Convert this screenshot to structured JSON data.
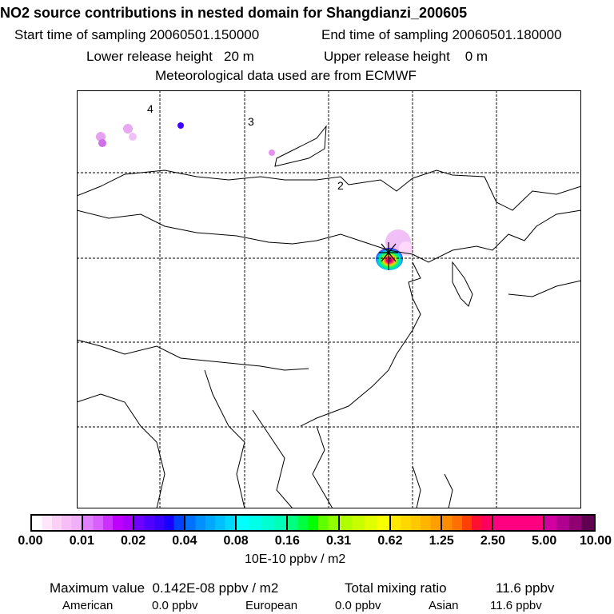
{
  "header": {
    "title": "NO2 source contributions in nested domain for Shangdianzi_200605",
    "start_label": "Start time of sampling 20060501.150000",
    "end_label": "End time of sampling 20060501.180000",
    "lower_label": "Lower release height   20 m",
    "upper_label": "Upper release height    0 m",
    "met_label": "Meteorological data used are from ECMWF"
  },
  "map": {
    "labels": [
      "4",
      "3",
      "2"
    ]
  },
  "colorbar": {
    "ticks": [
      "0.00",
      "0.01",
      "0.02",
      "0.04",
      "0.08",
      "0.16",
      "0.31",
      "0.62",
      "1.25",
      "2.50",
      "5.00",
      "10.00"
    ],
    "segments": [
      [
        "#ffffff",
        "#ffe6fa",
        "#fcd0f6",
        "#f6bdf6",
        "#f0b0f8"
      ],
      [
        "#e080ff",
        "#d860ff",
        "#cc30ff",
        "#c000ff",
        "#a800f8"
      ],
      [
        "#7000ff",
        "#5000ff",
        "#3800ff",
        "#1800ff",
        "#0040ff"
      ],
      [
        "#0070ff",
        "#0090ff",
        "#00a8ff",
        "#00c0ff",
        "#00d8ff"
      ],
      [
        "#00ffff",
        "#00ffe8",
        "#00ffd0",
        "#00ffb8"
      ],
      [
        "#00ff80",
        "#00ff40",
        "#00ff00",
        "#60ff00",
        "#90ff00"
      ],
      [
        "#b0ff00",
        "#c8ff00",
        "#e0ff00",
        "#f8ff00"
      ],
      [
        "#ffe800",
        "#ffd800",
        "#ffc800",
        "#ffb400",
        "#ffa000"
      ],
      [
        "#ff8c00",
        "#ff7000",
        "#ff4000",
        "#ff1030",
        "#ff0060"
      ],
      [
        "#ff0080",
        "#ff0080"
      ],
      [
        "#d000a0",
        "#b00090",
        "#900070",
        "#600050"
      ]
    ],
    "unit": "10E-10 ppbv / m2"
  },
  "footer": {
    "max_label": "Maximum value  0.142E-08 ppbv / m2",
    "total_label": "Total mixing ratio",
    "total_value": "11.6 ppbv",
    "american_label": "American",
    "american_value": "0.0 ppbv",
    "european_label": "European",
    "european_value": "0.0 ppbv",
    "asian_label": "Asian",
    "asian_value": "11.6 ppbv"
  }
}
